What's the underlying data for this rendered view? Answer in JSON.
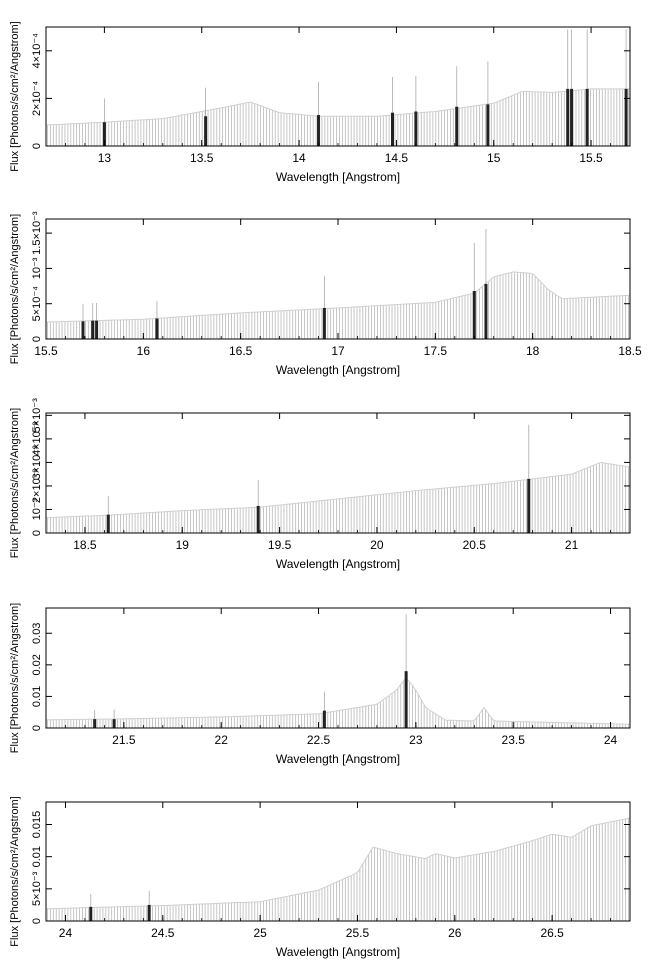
{
  "chart_data": [
    {
      "type": "bar",
      "xlabel": "Wavelength [Angstrom]",
      "ylabel": "Flux [Photons/s/cm²/Angstrom]",
      "xlim": [
        12.7,
        15.7
      ],
      "ylim": [
        0,
        0.0005
      ],
      "x_ticks": [
        {
          "v": 13,
          "label": "13"
        },
        {
          "v": 13.5,
          "label": "13.5"
        },
        {
          "v": 14,
          "label": "14"
        },
        {
          "v": 14.5,
          "label": "14.5"
        },
        {
          "v": 15,
          "label": "15"
        },
        {
          "v": 15.5,
          "label": "15.5"
        }
      ],
      "y_ticks": [
        {
          "v": 0,
          "label": "0"
        },
        {
          "v": 0.0002,
          "label": "2×10⁻⁴"
        },
        {
          "v": 0.0004,
          "label": "4×10⁻⁴"
        }
      ],
      "continuum": [
        [
          12.7,
          8.8e-05
        ],
        [
          13.0,
          0.0001
        ],
        [
          13.3,
          0.000115
        ],
        [
          13.6,
          0.00016
        ],
        [
          13.75,
          0.000185
        ],
        [
          13.9,
          0.00014
        ],
        [
          14.1,
          0.000125
        ],
        [
          14.4,
          0.000125
        ],
        [
          14.7,
          0.000145
        ],
        [
          15.0,
          0.00018
        ],
        [
          15.15,
          0.00023
        ],
        [
          15.3,
          0.000225
        ],
        [
          15.5,
          0.00024
        ],
        [
          15.7,
          0.00024
        ]
      ],
      "lines": [
        {
          "x": 13.0,
          "y": 0.0001,
          "err": 0.0001
        },
        {
          "x": 13.52,
          "y": 0.000125,
          "err": 0.00012
        },
        {
          "x": 14.1,
          "y": 0.00013,
          "err": 0.00014
        },
        {
          "x": 14.48,
          "y": 0.00014,
          "err": 0.00015
        },
        {
          "x": 14.6,
          "y": 0.000145,
          "err": 0.00015
        },
        {
          "x": 14.81,
          "y": 0.000165,
          "err": 0.00017
        },
        {
          "x": 14.97,
          "y": 0.000175,
          "err": 0.00018
        },
        {
          "x": 15.38,
          "y": 0.00024,
          "err": 0.00025
        },
        {
          "x": 15.4,
          "y": 0.00024,
          "err": 0.00025
        },
        {
          "x": 15.48,
          "y": 0.00024,
          "err": 0.00025
        },
        {
          "x": 15.68,
          "y": 0.00024,
          "err": 0.00025
        }
      ]
    },
    {
      "type": "bar",
      "xlabel": "Wavelength [Angstrom]",
      "ylabel": "Flux [Photons/s/cm²/Angstrom]",
      "xlim": [
        15.5,
        18.5
      ],
      "ylim": [
        0,
        0.0017
      ],
      "x_ticks": [
        {
          "v": 15.5,
          "label": "15.5"
        },
        {
          "v": 16,
          "label": "16"
        },
        {
          "v": 16.5,
          "label": "16.5"
        },
        {
          "v": 17,
          "label": "17"
        },
        {
          "v": 17.5,
          "label": "17.5"
        },
        {
          "v": 18,
          "label": "18"
        },
        {
          "v": 18.5,
          "label": "18.5"
        }
      ],
      "y_ticks": [
        {
          "v": 0,
          "label": "0"
        },
        {
          "v": 0.0005,
          "label": "5×10⁻⁴"
        },
        {
          "v": 0.001,
          "label": "10⁻³"
        },
        {
          "v": 0.0015,
          "label": "1.5×10⁻³"
        }
      ],
      "continuum": [
        [
          15.5,
          0.00024
        ],
        [
          16.0,
          0.00028
        ],
        [
          16.5,
          0.00037
        ],
        [
          17.0,
          0.00044
        ],
        [
          17.5,
          0.00052
        ],
        [
          17.7,
          0.00065
        ],
        [
          17.8,
          0.00088
        ],
        [
          17.9,
          0.00095
        ],
        [
          18.0,
          0.00093
        ],
        [
          18.08,
          0.0007
        ],
        [
          18.15,
          0.00057
        ],
        [
          18.5,
          0.00062
        ]
      ],
      "lines": [
        {
          "x": 15.69,
          "y": 0.00025,
          "err": 0.00025
        },
        {
          "x": 15.74,
          "y": 0.00026,
          "err": 0.00025
        },
        {
          "x": 15.76,
          "y": 0.00026,
          "err": 0.00025
        },
        {
          "x": 16.07,
          "y": 0.00029,
          "err": 0.00025
        },
        {
          "x": 16.93,
          "y": 0.00044,
          "err": 0.00045
        },
        {
          "x": 17.7,
          "y": 0.00068,
          "err": 0.00068
        },
        {
          "x": 17.76,
          "y": 0.00078,
          "err": 0.00078
        }
      ]
    },
    {
      "type": "bar",
      "xlabel": "Wavelength [Angstrom]",
      "ylabel": "Flux [Photons/s/cm²/Angstrom]",
      "xlim": [
        18.3,
        21.3
      ],
      "ylim": [
        0,
        0.0051
      ],
      "x_ticks": [
        {
          "v": 18.5,
          "label": "18.5"
        },
        {
          "v": 19,
          "label": "19"
        },
        {
          "v": 19.5,
          "label": "19.5"
        },
        {
          "v": 20,
          "label": "20"
        },
        {
          "v": 20.5,
          "label": "20.5"
        },
        {
          "v": 21,
          "label": "21"
        }
      ],
      "y_ticks": [
        {
          "v": 0,
          "label": "0"
        },
        {
          "v": 0.001,
          "label": "10⁻³"
        },
        {
          "v": 0.002,
          "label": "2×10⁻³"
        },
        {
          "v": 0.003,
          "label": "3×10⁻³"
        },
        {
          "v": 0.004,
          "label": "4×10⁻³"
        },
        {
          "v": 0.005,
          "label": "5×10⁻³"
        }
      ],
      "continuum": [
        [
          18.3,
          0.00065
        ],
        [
          18.6,
          0.00075
        ],
        [
          19.0,
          0.00095
        ],
        [
          19.4,
          0.0011
        ],
        [
          19.8,
          0.00145
        ],
        [
          20.2,
          0.0018
        ],
        [
          20.6,
          0.0021
        ],
        [
          21.0,
          0.0025
        ],
        [
          21.15,
          0.003
        ],
        [
          21.3,
          0.0028
        ]
      ],
      "lines": [
        {
          "x": 18.62,
          "y": 0.00078,
          "err": 0.0008
        },
        {
          "x": 19.39,
          "y": 0.00115,
          "err": 0.0011
        },
        {
          "x": 20.78,
          "y": 0.0023,
          "err": 0.0023
        }
      ]
    },
    {
      "type": "bar",
      "xlabel": "Wavelength [Angstrom]",
      "ylabel": "Flux [Photons/s/cm²/Angstrom]",
      "xlim": [
        21.1,
        24.1
      ],
      "ylim": [
        0,
        0.038
      ],
      "x_ticks": [
        {
          "v": 21.5,
          "label": "21.5"
        },
        {
          "v": 22,
          "label": "22"
        },
        {
          "v": 22.5,
          "label": "22.5"
        },
        {
          "v": 23,
          "label": "23"
        },
        {
          "v": 23.5,
          "label": "23.5"
        },
        {
          "v": 24,
          "label": "24"
        }
      ],
      "y_ticks": [
        {
          "v": 0,
          "label": "0"
        },
        {
          "v": 0.01,
          "label": "0.01"
        },
        {
          "v": 0.02,
          "label": "0.02"
        },
        {
          "v": 0.03,
          "label": "0.03"
        }
      ],
      "continuum": [
        [
          21.1,
          0.0026
        ],
        [
          21.5,
          0.0029
        ],
        [
          22.0,
          0.0035
        ],
        [
          22.5,
          0.0045
        ],
        [
          22.8,
          0.0075
        ],
        [
          22.9,
          0.012
        ],
        [
          22.95,
          0.016
        ],
        [
          23.0,
          0.012
        ],
        [
          23.05,
          0.0065
        ],
        [
          23.15,
          0.0025
        ],
        [
          23.3,
          0.0022
        ],
        [
          23.35,
          0.0065
        ],
        [
          23.4,
          0.0022
        ],
        [
          24.1,
          0.0012
        ]
      ],
      "lines": [
        {
          "x": 21.35,
          "y": 0.0028,
          "err": 0.003
        },
        {
          "x": 21.45,
          "y": 0.0028,
          "err": 0.003
        },
        {
          "x": 22.53,
          "y": 0.0055,
          "err": 0.006
        },
        {
          "x": 22.95,
          "y": 0.018,
          "err": 0.018
        }
      ]
    },
    {
      "type": "bar",
      "xlabel": "Wavelength [Angstrom]",
      "ylabel": "Flux [Photons/s/cm²/Angstrom]",
      "xlim": [
        23.9,
        26.9
      ],
      "ylim": [
        0,
        0.0185
      ],
      "x_ticks": [
        {
          "v": 24,
          "label": "24"
        },
        {
          "v": 24.5,
          "label": "24.5"
        },
        {
          "v": 25,
          "label": "25"
        },
        {
          "v": 25.5,
          "label": "25.5"
        },
        {
          "v": 26,
          "label": "26"
        },
        {
          "v": 26.5,
          "label": "26.5"
        }
      ],
      "y_ticks": [
        {
          "v": 0,
          "label": "0"
        },
        {
          "v": 0.005,
          "label": "5×10⁻³"
        },
        {
          "v": 0.01,
          "label": "0.01"
        },
        {
          "v": 0.015,
          "label": "0.015"
        }
      ],
      "continuum": [
        [
          23.9,
          0.0019
        ],
        [
          24.5,
          0.0024
        ],
        [
          25.0,
          0.003
        ],
        [
          25.3,
          0.0048
        ],
        [
          25.5,
          0.0075
        ],
        [
          25.58,
          0.0115
        ],
        [
          25.7,
          0.0105
        ],
        [
          25.85,
          0.0097
        ],
        [
          25.9,
          0.0105
        ],
        [
          26.0,
          0.0098
        ],
        [
          26.2,
          0.0108
        ],
        [
          26.4,
          0.0125
        ],
        [
          26.5,
          0.0135
        ],
        [
          26.6,
          0.013
        ],
        [
          26.7,
          0.0148
        ],
        [
          26.9,
          0.016
        ]
      ],
      "lines": [
        {
          "x": 24.13,
          "y": 0.0022,
          "err": 0.002
        },
        {
          "x": 24.43,
          "y": 0.0025,
          "err": 0.0022
        }
      ]
    }
  ]
}
